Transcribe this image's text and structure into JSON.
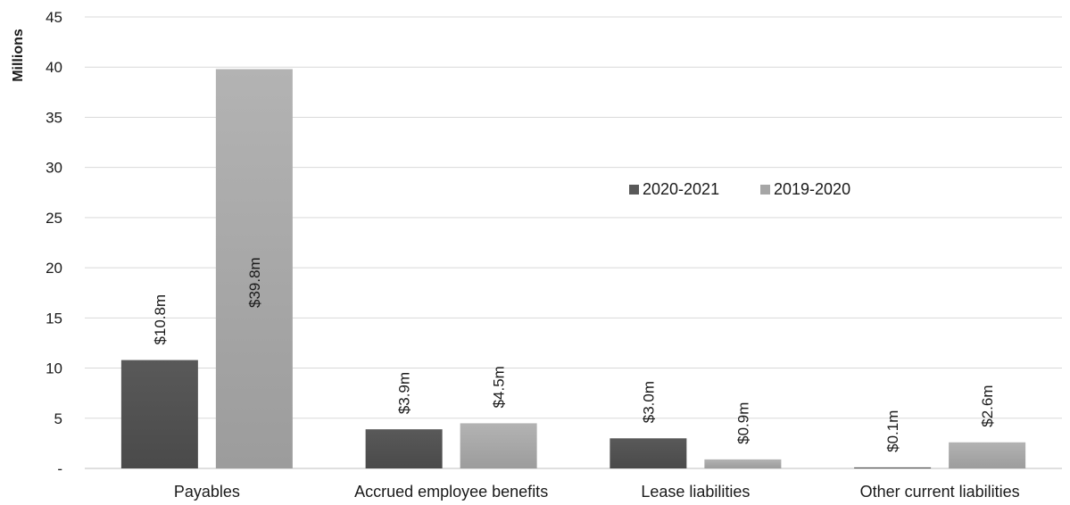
{
  "chart_data": {
    "type": "bar",
    "ylabel": "Millions",
    "ylim": [
      0,
      45
    ],
    "ytick_labels": [
      "-",
      "5",
      "10",
      "15",
      "20",
      "25",
      "30",
      "35",
      "40",
      "45"
    ],
    "categories": [
      "Payables",
      "Accrued employee benefits",
      "Lease liabilities",
      "Other current liabilities"
    ],
    "series": [
      {
        "name": "2020-2021",
        "values": [
          10.8,
          3.9,
          3.0,
          0.1
        ],
        "labels": [
          "$10.8m",
          "$3.9m",
          "$3.0m",
          "$0.1m"
        ],
        "color": "#595959"
      },
      {
        "name": "2019-2020",
        "values": [
          39.8,
          4.5,
          0.9,
          2.6
        ],
        "labels": [
          "$39.8m",
          "$4.5m",
          "$0.9m",
          "$2.6m"
        ],
        "color": "#a6a6a6"
      }
    ],
    "grid": true,
    "legend_position": "right-center"
  }
}
